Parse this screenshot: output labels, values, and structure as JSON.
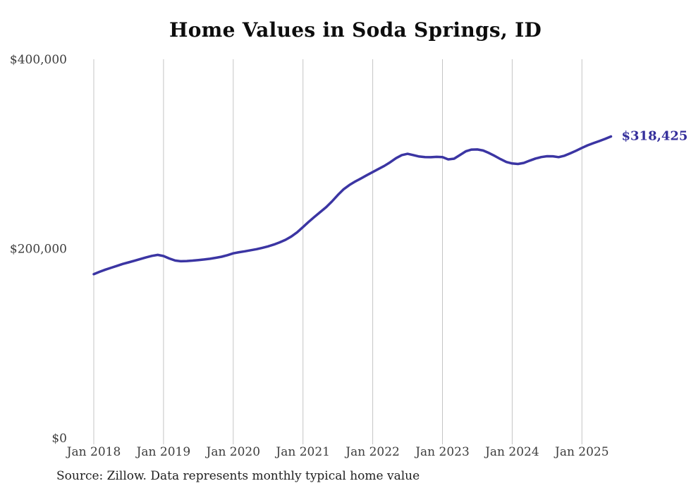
{
  "chart_data": {
    "type": "line",
    "title": "Home Values in Soda Springs, ID",
    "source": "Source: Zillow. Data represents monthly typical home value",
    "legend": "none",
    "grid": "vertical-only",
    "y_axis": {
      "min": 0,
      "max": 400000
    },
    "y_ticks": [
      {
        "label": "$0",
        "value": 0
      },
      {
        "label": "$200,000",
        "value": 200000
      },
      {
        "label": "$400,000",
        "value": 400000
      }
    ],
    "x_tick_labels": [
      "Jan 2018",
      "Jan 2019",
      "Jan 2020",
      "Jan 2021",
      "Jan 2022",
      "Jan 2023",
      "Jan 2024",
      "Jan 2025"
    ],
    "latest_value_label": "$318,425",
    "line_color": "#3b35a3",
    "annotation_color": "#342e9b",
    "tick_label_color": "#3d3d3d",
    "gridline_color": "#c4c4c4",
    "series": [
      {
        "name": "Monthly typical home value",
        "interval": "monthly",
        "start_month": "2018-01",
        "end_month": "2025-06",
        "values": [
          173000,
          175500,
          177800,
          179800,
          181800,
          183800,
          185500,
          187200,
          189000,
          190800,
          192300,
          193400,
          192200,
          189600,
          187400,
          186700,
          186900,
          187300,
          187900,
          188500,
          189300,
          190300,
          191400,
          193100,
          195000,
          196200,
          197200,
          198300,
          199400,
          200800,
          202400,
          204300,
          206600,
          209300,
          212800,
          217300,
          222800,
          228400,
          233700,
          238700,
          243900,
          249900,
          256700,
          262700,
          267200,
          270900,
          274200,
          277600,
          280900,
          284100,
          287400,
          291200,
          295500,
          298800,
          300100,
          298800,
          297300,
          296600,
          296500,
          296900,
          296600,
          294200,
          295000,
          298800,
          302700,
          304600,
          304700,
          303600,
          301000,
          297900,
          294500,
          291500,
          289900,
          289400,
          290500,
          292900,
          295100,
          296700,
          297600,
          297500,
          296600,
          298100,
          300600,
          303400,
          306400,
          309100,
          311400,
          313600,
          315900,
          318425
        ]
      }
    ]
  }
}
